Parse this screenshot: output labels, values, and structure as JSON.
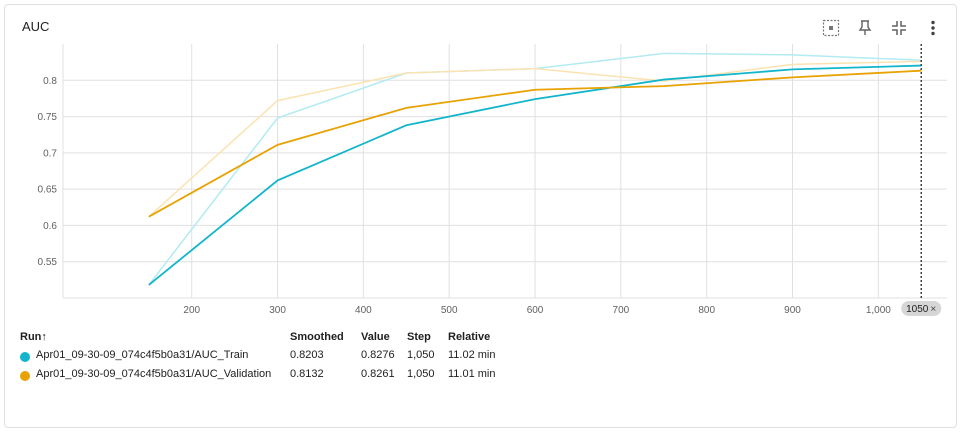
{
  "title": "AUC",
  "toolbar": [
    {
      "name": "fit-domain-icon"
    },
    {
      "name": "pin-icon"
    },
    {
      "name": "collapse-icon"
    },
    {
      "name": "more-vert-icon"
    }
  ],
  "table": {
    "headers": {
      "run": "Run",
      "sort": "↑",
      "smoothed": "Smoothed",
      "value": "Value",
      "step": "Step",
      "relative": "Relative"
    },
    "rows": [
      {
        "run": "Apr01_09-30-09_074c4f5b0a31/AUC_Train",
        "smoothed": "0.8203",
        "value": "0.8276",
        "step": "1,050",
        "relative": "11.02 min",
        "color": "#12b5cb"
      },
      {
        "run": "Apr01_09-30-09_074c4f5b0a31/AUC_Validation",
        "smoothed": "0.8132",
        "value": "0.8261",
        "step": "1,050",
        "relative": "11.01 min",
        "color": "#e8a203"
      }
    ]
  },
  "chart_data": {
    "type": "line",
    "title": "AUC",
    "xlim": [
      50,
      1080
    ],
    "ylim": [
      0.5,
      0.85
    ],
    "x_ticks": [
      {
        "v": 200,
        "label": "200"
      },
      {
        "v": 300,
        "label": "300"
      },
      {
        "v": 400,
        "label": "400"
      },
      {
        "v": 500,
        "label": "500"
      },
      {
        "v": 600,
        "label": "600"
      },
      {
        "v": 700,
        "label": "700"
      },
      {
        "v": 800,
        "label": "800"
      },
      {
        "v": 900,
        "label": "900"
      },
      {
        "v": 1000,
        "label": "1,000"
      }
    ],
    "y_ticks": [
      {
        "v": 0.55,
        "label": "0.55"
      },
      {
        "v": 0.6,
        "label": "0.6"
      },
      {
        "v": 0.65,
        "label": "0.65"
      },
      {
        "v": 0.7,
        "label": "0.7"
      },
      {
        "v": 0.75,
        "label": "0.75"
      },
      {
        "v": 0.8,
        "label": "0.8"
      }
    ],
    "cursor": {
      "x": 1050,
      "label": "1050",
      "close": "×"
    },
    "grid": true,
    "series": [
      {
        "name": "Apr01_09-30-09_074c4f5b0a31/AUC_Train",
        "color": "#12b5cb",
        "raw_color": "#b2ebf2",
        "x": [
          150,
          300,
          450,
          600,
          750,
          900,
          1050
        ],
        "raw": [
          0.518,
          0.748,
          0.81,
          0.816,
          0.837,
          0.835,
          0.8276
        ],
        "smoothed": [
          0.518,
          0.662,
          0.738,
          0.774,
          0.801,
          0.815,
          0.8203
        ]
      },
      {
        "name": "Apr01_09-30-09_074c4f5b0a31/AUC_Validation",
        "color": "#e8a203",
        "raw_color": "#fbe3b1",
        "x": [
          150,
          300,
          450,
          600,
          750,
          900,
          1050
        ],
        "raw": [
          0.612,
          0.772,
          0.81,
          0.816,
          0.799,
          0.822,
          0.8261
        ],
        "smoothed": [
          0.612,
          0.711,
          0.762,
          0.787,
          0.792,
          0.804,
          0.8132
        ]
      }
    ]
  }
}
